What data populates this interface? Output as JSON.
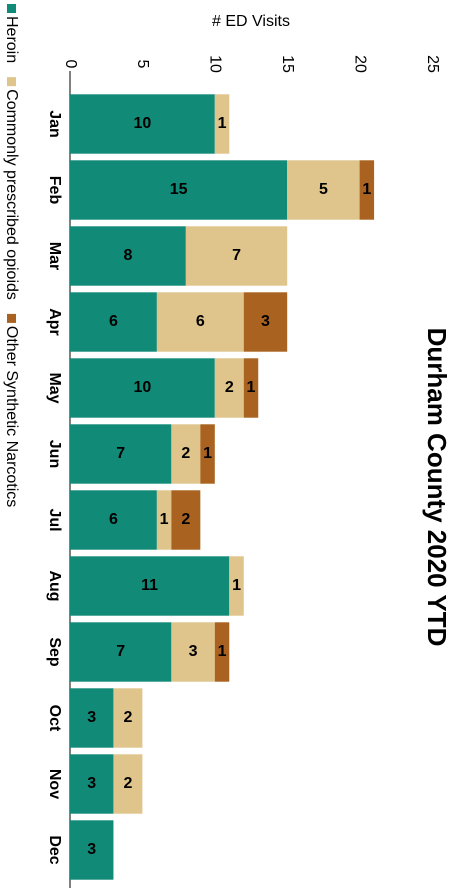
{
  "chart_data": {
    "type": "stacked_bar",
    "title": "Durham County 2020 YTD",
    "y_label": "# ED Visits",
    "categories": [
      "Jan",
      "Feb",
      "Mar",
      "Apr",
      "May",
      "Jun",
      "Jul",
      "Aug",
      "Sep",
      "Oct",
      "Nov",
      "Dec"
    ],
    "series": [
      {
        "name": "Heroin",
        "color": "#128a78",
        "values": [
          10,
          15,
          8,
          6,
          10,
          7,
          6,
          11,
          7,
          3,
          3,
          3
        ]
      },
      {
        "name": "Commonly prescribed opioids",
        "color": "#dfc48b",
        "values": [
          1,
          5,
          7,
          6,
          2,
          2,
          1,
          1,
          3,
          2,
          2,
          null
        ]
      },
      {
        "name": "Other Synthetic Narcotics",
        "color": "#a9621f",
        "values": [
          null,
          1,
          null,
          3,
          1,
          1,
          2,
          null,
          1,
          null,
          null,
          null
        ]
      }
    ],
    "ylim": [
      0,
      25
    ],
    "yticks": [
      0,
      5,
      10,
      15,
      20,
      25
    ],
    "grid": false,
    "legend": "bottom"
  }
}
